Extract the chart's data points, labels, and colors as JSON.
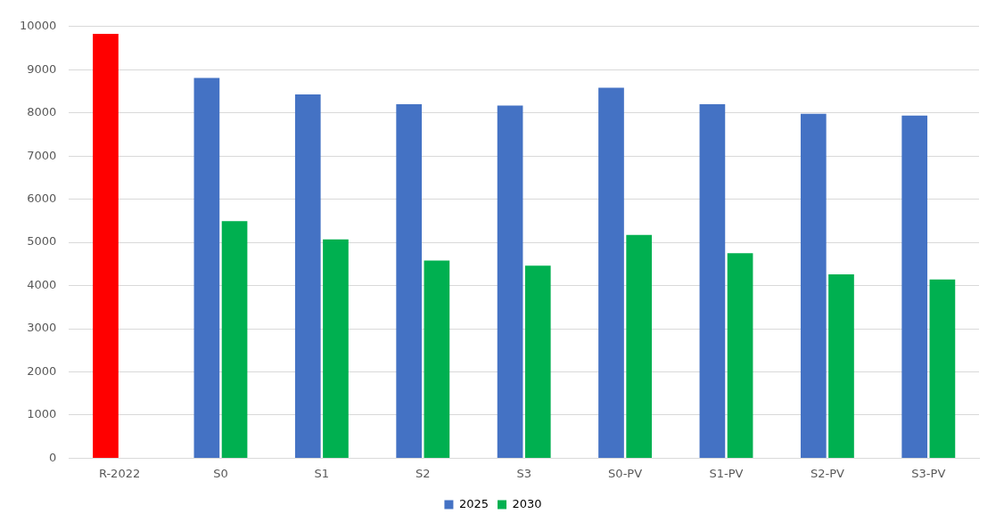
{
  "chart_data": {
    "type": "bar",
    "categories": [
      "R-2022",
      "S0",
      "S1",
      "S2",
      "S3",
      "S0-PV",
      "S1-PV",
      "S2-PV",
      "S3-PV"
    ],
    "series": [
      {
        "name": "2025",
        "color": "#4472c4",
        "colors": [
          "#ff0000",
          "#4472c4",
          "#4472c4",
          "#4472c4",
          "#4472c4",
          "#4472c4",
          "#4472c4",
          "#4472c4",
          "#4472c4"
        ],
        "values": [
          9830,
          8810,
          8430,
          8200,
          8170,
          8580,
          8200,
          7980,
          7940
        ]
      },
      {
        "name": "2030",
        "color": "#00b050",
        "values": [
          null,
          5490,
          5070,
          4580,
          4460,
          5170,
          4750,
          4260,
          4140
        ]
      }
    ],
    "ylim": [
      0,
      10000
    ],
    "yticks": [
      0,
      1000,
      2000,
      3000,
      4000,
      5000,
      6000,
      7000,
      8000,
      9000,
      10000
    ],
    "grid": "y",
    "legend": "bottom"
  }
}
